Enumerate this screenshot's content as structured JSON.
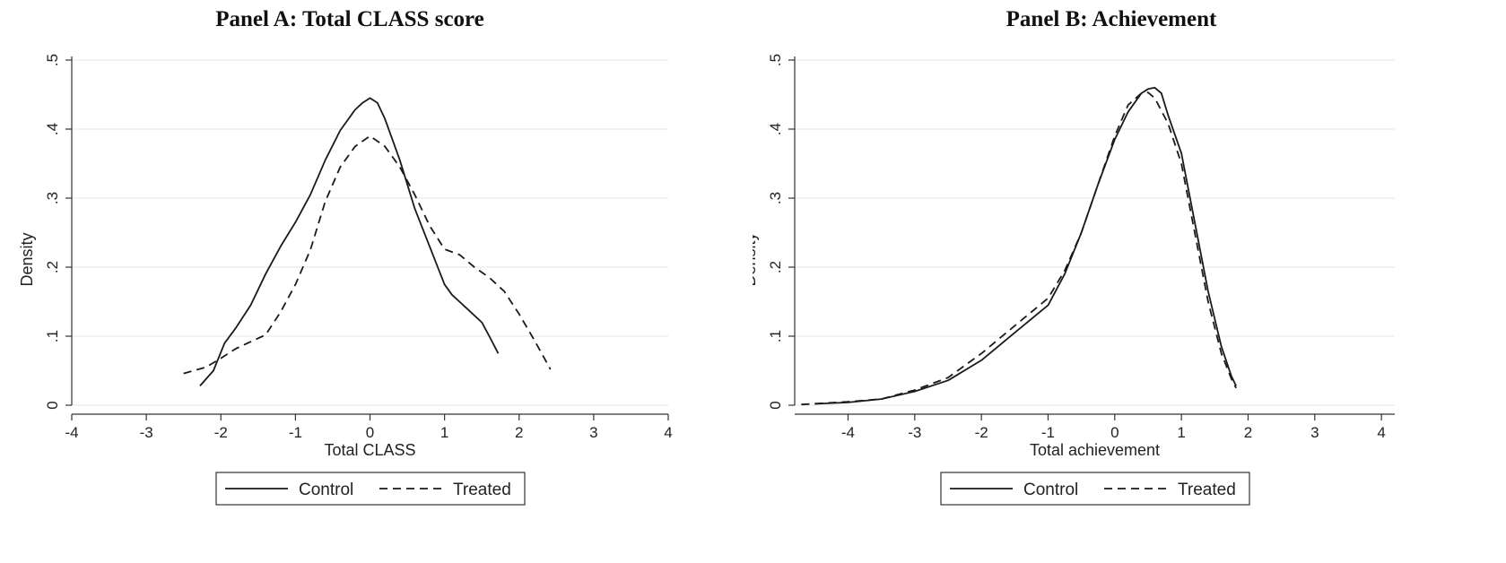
{
  "chart_data": [
    {
      "type": "line",
      "title": "Panel A: Total CLASS score",
      "xlabel": "Total CLASS",
      "ylabel": "Density",
      "xlim": [
        -4,
        4
      ],
      "ylim": [
        0,
        0.5
      ],
      "xticks": [
        -4,
        -3,
        -2,
        -1,
        0,
        1,
        2,
        3,
        4
      ],
      "xtick_labels": [
        "-4",
        "-3",
        "-2",
        "-1",
        "0",
        "1",
        "2",
        "3",
        "4"
      ],
      "yticks": [
        0,
        0.1,
        0.2,
        0.3,
        0.4,
        0.5
      ],
      "ytick_labels": [
        "0",
        ".1",
        ".2",
        ".3",
        ".4",
        ".5"
      ],
      "grid": true,
      "legend_position": "bottom",
      "series": [
        {
          "name": "Control",
          "style": "solid",
          "x": [
            -2.28,
            -2.1,
            -1.95,
            -1.8,
            -1.6,
            -1.4,
            -1.2,
            -1.0,
            -0.8,
            -0.6,
            -0.4,
            -0.2,
            -0.1,
            0.0,
            0.1,
            0.2,
            0.4,
            0.6,
            0.8,
            1.0,
            1.1,
            1.3,
            1.5,
            1.6,
            1.72
          ],
          "y": [
            0.028,
            0.05,
            0.09,
            0.112,
            0.145,
            0.19,
            0.23,
            0.265,
            0.305,
            0.355,
            0.398,
            0.428,
            0.438,
            0.445,
            0.438,
            0.415,
            0.355,
            0.285,
            0.23,
            0.175,
            0.16,
            0.14,
            0.12,
            0.1,
            0.075
          ]
        },
        {
          "name": "Treated",
          "style": "dashed",
          "x": [
            -2.5,
            -2.2,
            -2.0,
            -1.8,
            -1.6,
            -1.4,
            -1.2,
            -1.0,
            -0.8,
            -0.6,
            -0.4,
            -0.2,
            0.0,
            0.2,
            0.4,
            0.6,
            0.8,
            1.0,
            1.2,
            1.4,
            1.6,
            1.8,
            2.0,
            2.2,
            2.42
          ],
          "y": [
            0.046,
            0.055,
            0.068,
            0.082,
            0.092,
            0.102,
            0.135,
            0.175,
            0.225,
            0.295,
            0.345,
            0.375,
            0.39,
            0.375,
            0.345,
            0.305,
            0.26,
            0.226,
            0.218,
            0.2,
            0.185,
            0.165,
            0.132,
            0.095,
            0.052
          ]
        }
      ]
    },
    {
      "type": "line",
      "title": "Panel B: Achievement",
      "xlabel": "Total achievement",
      "ylabel": "Density",
      "xlim": [
        -4.8,
        4.2
      ],
      "ylim": [
        0,
        0.5
      ],
      "xticks": [
        -4,
        -3,
        -2,
        -1,
        0,
        1,
        2,
        3,
        4
      ],
      "xtick_labels": [
        "-4",
        "-3",
        "-2",
        "-1",
        "0",
        "1",
        "2",
        "3",
        "4"
      ],
      "yticks": [
        0,
        0.1,
        0.2,
        0.3,
        0.4,
        0.5
      ],
      "ytick_labels": [
        "0",
        ".1",
        ".2",
        ".3",
        ".4",
        ".5"
      ],
      "grid": true,
      "legend_position": "bottom",
      "series": [
        {
          "name": "Control",
          "style": "solid",
          "x": [
            -4.5,
            -4.0,
            -3.5,
            -3.0,
            -2.5,
            -2.0,
            -1.5,
            -1.0,
            -0.75,
            -0.5,
            -0.25,
            0.0,
            0.2,
            0.4,
            0.5,
            0.6,
            0.7,
            0.8,
            1.0,
            1.2,
            1.4,
            1.6,
            1.75,
            1.82
          ],
          "y": [
            0.002,
            0.004,
            0.009,
            0.02,
            0.036,
            0.065,
            0.105,
            0.145,
            0.19,
            0.25,
            0.32,
            0.385,
            0.425,
            0.452,
            0.458,
            0.46,
            0.452,
            0.42,
            0.365,
            0.265,
            0.165,
            0.085,
            0.042,
            0.028
          ]
        },
        {
          "name": "Treated",
          "style": "dashed",
          "x": [
            -4.7,
            -4.0,
            -3.5,
            -3.0,
            -2.5,
            -2.0,
            -1.5,
            -1.0,
            -0.75,
            -0.5,
            -0.25,
            0.0,
            0.2,
            0.4,
            0.5,
            0.6,
            0.8,
            1.0,
            1.2,
            1.4,
            1.6,
            1.75,
            1.82
          ],
          "y": [
            0.001,
            0.005,
            0.009,
            0.022,
            0.04,
            0.075,
            0.115,
            0.155,
            0.195,
            0.25,
            0.32,
            0.39,
            0.435,
            0.452,
            0.453,
            0.445,
            0.408,
            0.35,
            0.25,
            0.15,
            0.075,
            0.038,
            0.025
          ]
        }
      ]
    }
  ]
}
